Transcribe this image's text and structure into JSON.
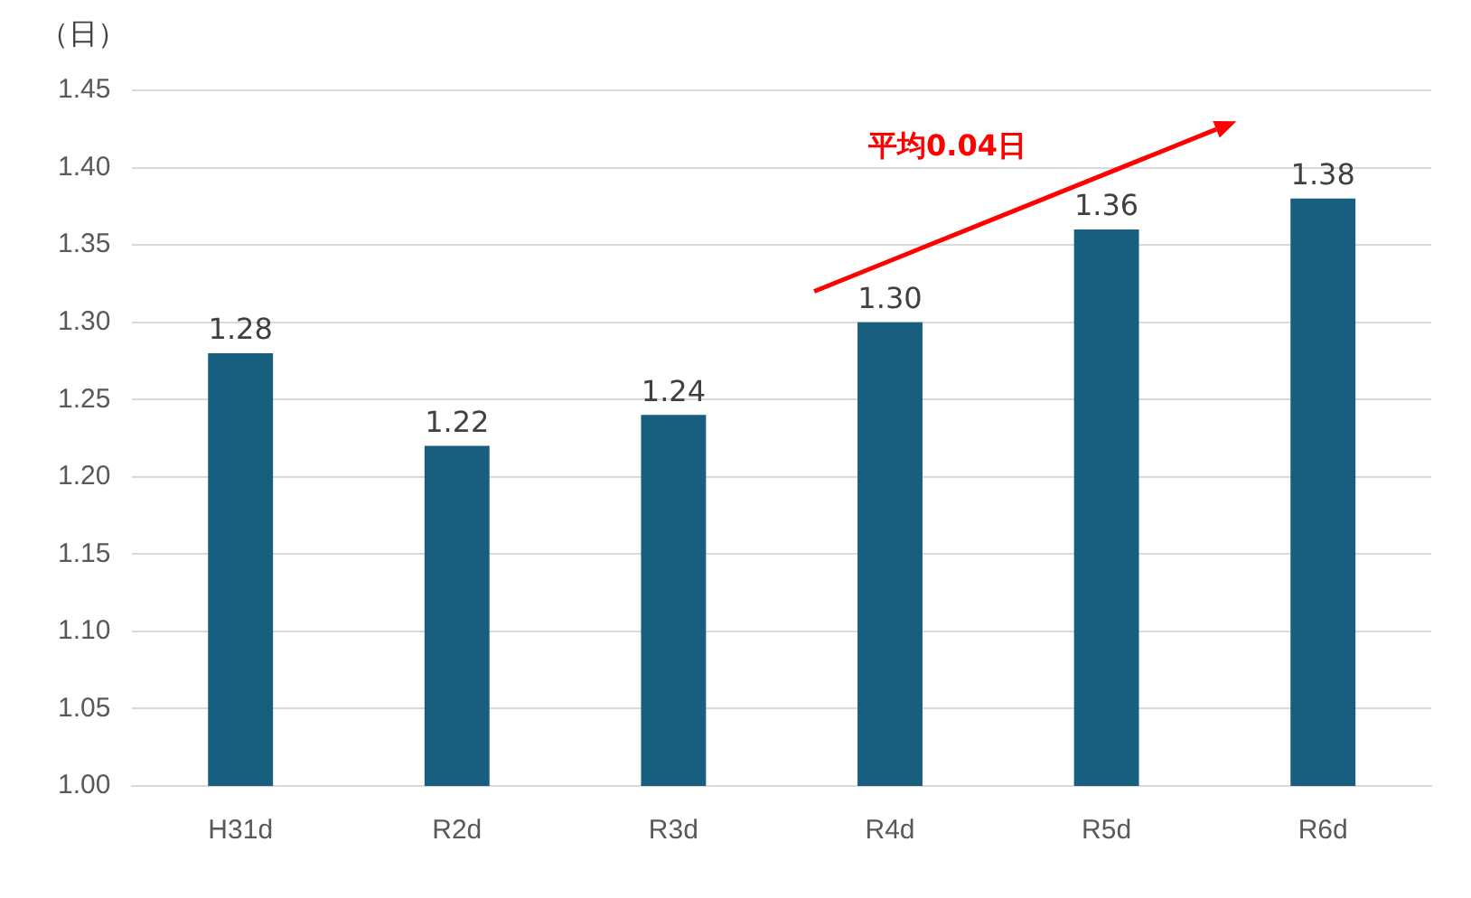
{
  "chart_data": {
    "type": "bar",
    "ylabel": "（日）",
    "categories": [
      "H31d",
      "R2d",
      "R3d",
      "R4d",
      "R5d",
      "R6d"
    ],
    "values": [
      1.28,
      1.22,
      1.24,
      1.3,
      1.36,
      1.38
    ],
    "color": "#175e7f",
    "ylim": [
      1.0,
      1.45
    ],
    "yticks": [
      {
        "value": 1.0,
        "label": "1.00"
      },
      {
        "value": 1.05,
        "label": "1.05"
      },
      {
        "value": 1.1,
        "label": "1.10"
      },
      {
        "value": 1.15,
        "label": "1.15"
      },
      {
        "value": 1.2,
        "label": "1.20"
      },
      {
        "value": 1.25,
        "label": "1.25"
      },
      {
        "value": 1.3,
        "label": "1.30"
      },
      {
        "value": 1.35,
        "label": "1.35"
      },
      {
        "value": 1.4,
        "label": "1.40"
      },
      {
        "value": 1.45,
        "label": "1.45"
      }
    ],
    "value_labels": [
      "1.28",
      "1.22",
      "1.24",
      "1.30",
      "1.36",
      "1.38"
    ],
    "grid": "y",
    "legend": false,
    "annotations": [
      "平均0.04日"
    ]
  }
}
